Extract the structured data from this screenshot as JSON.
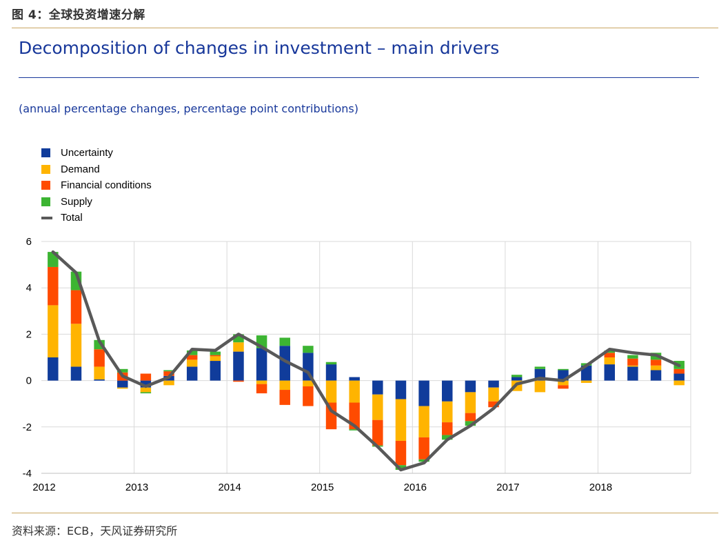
{
  "figure_caption": "图 4：全球投资增速分解",
  "source": "资料来源：ECB，天风证券研究所",
  "chart_data": {
    "type": "bar",
    "stacked": true,
    "title": "Decomposition of changes in investment – main drivers",
    "subtitle": "(annual percentage changes, percentage point contributions)",
    "ylim": [
      -4,
      6
    ],
    "yticks": [
      "6",
      "4",
      "2",
      "0",
      "-2",
      "-4"
    ],
    "ytick_values": [
      6,
      4,
      2,
      0,
      -2,
      -4
    ],
    "xticks": [
      "2012",
      "2013",
      "2014",
      "2015",
      "2016",
      "2017",
      "2018"
    ],
    "xtick_positions": [
      0,
      4,
      8,
      12,
      16,
      20,
      24
    ],
    "grid": true,
    "legend_position": "top-left",
    "categories": [
      "2012Q1",
      "2012Q2",
      "2012Q3",
      "2012Q4",
      "2013Q1",
      "2013Q2",
      "2013Q3",
      "2013Q4",
      "2014Q1",
      "2014Q2",
      "2014Q3",
      "2014Q4",
      "2015Q1",
      "2015Q2",
      "2015Q3",
      "2015Q4",
      "2016Q1",
      "2016Q2",
      "2016Q3",
      "2016Q4",
      "2017Q1",
      "2017Q2",
      "2017Q3",
      "2017Q4",
      "2018Q1",
      "2018Q2",
      "2018Q3",
      "2018Q4"
    ],
    "series": [
      {
        "name": "Uncertainty",
        "color": "#103c9b",
        "values": [
          1.0,
          0.6,
          0.05,
          -0.3,
          -0.3,
          0.2,
          0.6,
          0.85,
          1.25,
          1.4,
          1.5,
          1.2,
          0.7,
          0.15,
          -0.6,
          -0.8,
          -1.1,
          -0.9,
          -0.5,
          -0.3,
          0.15,
          0.5,
          0.45,
          0.65,
          0.7,
          0.6,
          0.45,
          0.3
        ]
      },
      {
        "name": "Demand",
        "color": "#ffb400",
        "values": [
          2.25,
          1.85,
          0.55,
          -0.05,
          -0.2,
          -0.2,
          0.3,
          0.2,
          0.4,
          -0.15,
          -0.4,
          -0.25,
          -0.95,
          -0.95,
          -1.1,
          -1.8,
          -1.35,
          -0.9,
          -0.9,
          -0.6,
          -0.45,
          -0.5,
          -0.2,
          -0.1,
          0.3,
          0.05,
          0.2,
          -0.2
        ]
      },
      {
        "name": "Financial conditions",
        "color": "#ff4b00",
        "values": [
          1.65,
          1.45,
          0.75,
          0.35,
          0.3,
          0.2,
          0.2,
          0.05,
          -0.05,
          -0.4,
          -0.65,
          -0.85,
          -1.15,
          -1.15,
          -1.1,
          -1.05,
          -0.95,
          -0.55,
          -0.35,
          -0.25,
          0.0,
          0.0,
          -0.15,
          0.0,
          0.2,
          0.3,
          0.25,
          0.2
        ]
      },
      {
        "name": "Supply",
        "color": "#3cb432",
        "values": [
          0.65,
          0.8,
          0.4,
          0.15,
          -0.05,
          0.05,
          0.2,
          0.15,
          0.35,
          0.55,
          0.35,
          0.3,
          0.1,
          -0.05,
          -0.05,
          -0.2,
          -0.1,
          -0.2,
          -0.2,
          0.0,
          0.1,
          0.1,
          0.05,
          0.1,
          0.1,
          0.15,
          0.3,
          0.35
        ]
      },
      {
        "name": "Total",
        "color": "#595959",
        "type": "line",
        "values": [
          5.55,
          4.65,
          1.7,
          0.2,
          -0.25,
          0.15,
          1.35,
          1.3,
          2.0,
          1.45,
          0.85,
          0.35,
          -1.3,
          -1.95,
          -2.85,
          -3.85,
          -3.55,
          -2.55,
          -1.95,
          -1.2,
          -0.15,
          0.1,
          0.0,
          0.65,
          1.35,
          1.2,
          1.1,
          0.65
        ]
      }
    ]
  }
}
